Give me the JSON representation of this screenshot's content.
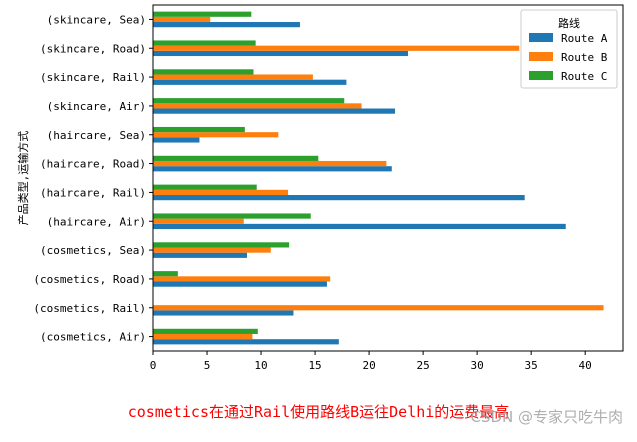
{
  "chart_data": {
    "type": "bar",
    "orientation": "horizontal",
    "ylabel": "产品类型,运输方式",
    "categories": [
      "(skincare, Sea)",
      "(skincare, Road)",
      "(skincare, Rail)",
      "(skincare, Air)",
      "(haircare, Sea)",
      "(haircare, Road)",
      "(haircare, Rail)",
      "(haircare, Air)",
      "(cosmetics, Sea)",
      "(cosmetics, Road)",
      "(cosmetics, Rail)",
      "(cosmetics, Air)"
    ],
    "series": [
      {
        "name": "Route A",
        "color": "#1f77b4",
        "values": [
          13.6,
          23.6,
          17.9,
          22.4,
          4.3,
          22.1,
          34.4,
          38.2,
          8.7,
          16.1,
          13.0,
          17.2
        ]
      },
      {
        "name": "Route B",
        "color": "#ff7f0e",
        "values": [
          5.3,
          33.9,
          14.8,
          19.3,
          11.6,
          21.6,
          12.5,
          8.4,
          10.9,
          16.4,
          41.7,
          9.2
        ]
      },
      {
        "name": "Route C",
        "color": "#2ca02c",
        "values": [
          9.1,
          9.5,
          9.3,
          17.7,
          8.5,
          15.3,
          9.6,
          14.6,
          12.6,
          2.3,
          0,
          9.7
        ]
      }
    ],
    "xlim": [
      0,
      43.5
    ],
    "xticks": [
      0,
      5,
      10,
      15,
      20,
      25,
      30,
      35,
      40
    ],
    "legend": {
      "title": "路线",
      "placement": "top-right"
    },
    "grid": false
  },
  "caption": "cosmetics在通过Rail使用路线B运往Delhi的运费最高",
  "watermark": "CSDN @专家只吃牛肉"
}
